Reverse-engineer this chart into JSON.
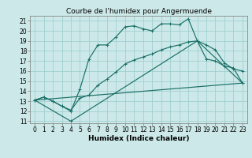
{
  "title": "Courbe de l'humidex pour Angermuende",
  "xlabel": "Humidex (Indice chaleur)",
  "bg_color": "#cce8e8",
  "grid_color": "#99cccc",
  "line_color": "#1a7068",
  "xlim": [
    -0.5,
    23.5
  ],
  "ylim_min": 10.8,
  "ylim_max": 21.5,
  "yticks": [
    11,
    12,
    13,
    14,
    15,
    16,
    17,
    18,
    19,
    20,
    21
  ],
  "xticks": [
    0,
    1,
    2,
    3,
    4,
    5,
    6,
    7,
    8,
    9,
    10,
    11,
    12,
    13,
    14,
    15,
    16,
    17,
    18,
    19,
    20,
    21,
    22,
    23
  ],
  "curve1_x": [
    0,
    1,
    2,
    3,
    4,
    5,
    6,
    7,
    8,
    9,
    10,
    11,
    12,
    13,
    14,
    15,
    16,
    17,
    18,
    19,
    20,
    21,
    22,
    23
  ],
  "curve1_y": [
    13.1,
    13.4,
    13.0,
    12.5,
    12.0,
    14.2,
    17.2,
    18.6,
    18.6,
    19.4,
    20.4,
    20.5,
    20.2,
    20.0,
    20.7,
    20.7,
    20.6,
    21.2,
    19.0,
    18.6,
    18.1,
    16.8,
    16.2,
    16.0
  ],
  "curve2_x": [
    0,
    1,
    2,
    3,
    4,
    5,
    6,
    7,
    8,
    9,
    10,
    11,
    12,
    13,
    14,
    15,
    16,
    17,
    18,
    19,
    20,
    21,
    22,
    23
  ],
  "curve2_y": [
    13.1,
    13.4,
    13.0,
    12.5,
    12.1,
    13.3,
    13.6,
    14.6,
    15.2,
    15.9,
    16.7,
    17.1,
    17.4,
    17.7,
    18.1,
    18.4,
    18.6,
    18.9,
    19.0,
    17.2,
    17.0,
    16.5,
    16.3,
    14.8
  ],
  "tri_x": [
    0,
    4,
    18,
    23,
    0
  ],
  "tri_y": [
    13.1,
    11.0,
    19.0,
    14.8,
    13.1
  ],
  "title_fontsize": 6.5,
  "xlabel_fontsize": 6.5,
  "tick_fontsize": 5.5,
  "linewidth": 0.85,
  "markersize": 2.2,
  "markeredgewidth": 0.7
}
